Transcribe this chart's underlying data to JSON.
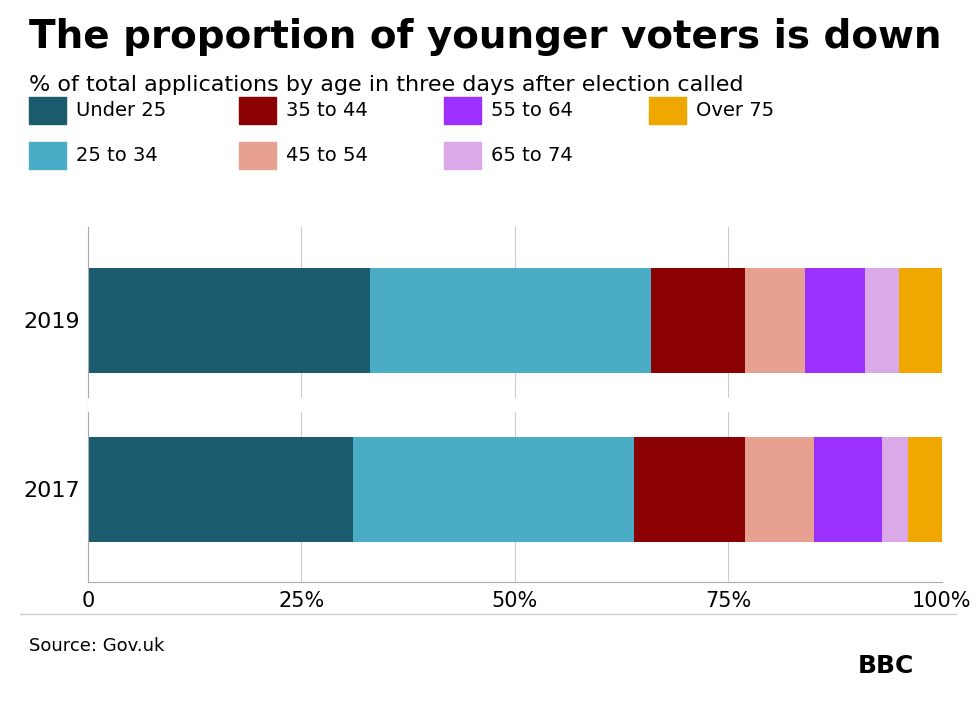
{
  "title": "The proportion of younger voters is down",
  "subtitle": "% of total applications by age in three days after election called",
  "source": "Source: Gov.uk",
  "years": [
    "2019",
    "2017"
  ],
  "categories": [
    "Under 25",
    "25 to 34",
    "35 to 44",
    "45 to 54",
    "55 to 64",
    "65 to 74",
    "Over 75"
  ],
  "colors": [
    "#1a5c6e",
    "#4bacc6",
    "#8b0000",
    "#e8a090",
    "#9b30ff",
    "#dba8e8",
    "#f0a800"
  ],
  "data": {
    "2019": [
      31,
      33,
      13,
      8,
      8,
      3,
      4
    ],
    "2017": [
      33,
      33,
      11,
      7,
      7,
      4,
      5
    ]
  },
  "xlim": [
    0,
    100
  ],
  "xticks": [
    0,
    25,
    50,
    75,
    100
  ],
  "xticklabels": [
    "0",
    "25%",
    "50%",
    "75%",
    "100%"
  ],
  "background_color": "#ffffff",
  "title_fontsize": 28,
  "subtitle_fontsize": 16,
  "legend_fontsize": 14,
  "tick_fontsize": 15,
  "bar_height": 0.62,
  "legend_row1": [
    "Under 25",
    "35 to 44",
    "55 to 64",
    "Over 75"
  ],
  "legend_row1_colors": [
    "#1a5c6e",
    "#8b0000",
    "#9b30ff",
    "#f0a800"
  ],
  "legend_row2": [
    "25 to 34",
    "45 to 54",
    "65 to 74"
  ],
  "legend_row2_colors": [
    "#4bacc6",
    "#e8a090",
    "#dba8e8"
  ]
}
